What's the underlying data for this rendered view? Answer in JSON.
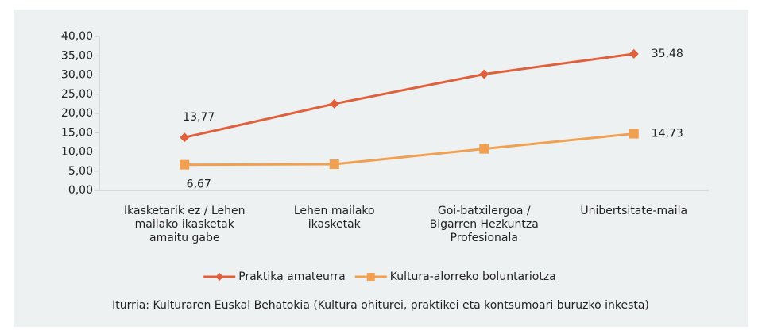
{
  "chart_data": {
    "type": "line",
    "categories": [
      [
        "Ikasketarik ez / Lehen",
        "mailako ikasketak",
        "amaitu gabe"
      ],
      [
        "Lehen mailako",
        "ikasketak"
      ],
      [
        "Goi-batxilergoa /",
        "Bigarren Hezkuntza",
        "Profesionala"
      ],
      [
        "Unibertsitate-maila"
      ]
    ],
    "series": [
      {
        "name": "Praktika amateurra",
        "color": "#e0603c",
        "marker": "diamond",
        "values": [
          13.77,
          22.5,
          30.2,
          35.48
        ],
        "value_labels": [
          "13,77",
          null,
          null,
          "35,48"
        ]
      },
      {
        "name": "Kultura-alorreko boluntariotza",
        "color": "#f0a050",
        "marker": "square",
        "values": [
          6.67,
          6.8,
          10.8,
          14.73
        ],
        "value_labels": [
          "6,67",
          null,
          null,
          "14,73"
        ]
      }
    ],
    "ylim": [
      0,
      40
    ],
    "yticks": [
      {
        "value": 0,
        "label": "0,00"
      },
      {
        "value": 5,
        "label": "5,00"
      },
      {
        "value": 10,
        "label": "10,00"
      },
      {
        "value": 15,
        "label": "15,00"
      },
      {
        "value": 20,
        "label": "20,00"
      },
      {
        "value": 25,
        "label": "25,00"
      },
      {
        "value": 30,
        "label": "30,00"
      },
      {
        "value": 35,
        "label": "35,00"
      },
      {
        "value": 40,
        "label": "40,00"
      }
    ],
    "legend": "bottom",
    "source": "Iturria: Kulturaren Euskal Behatokia (Kultura ohiturei, praktikei eta kontsumoari buruzko inkesta)"
  }
}
